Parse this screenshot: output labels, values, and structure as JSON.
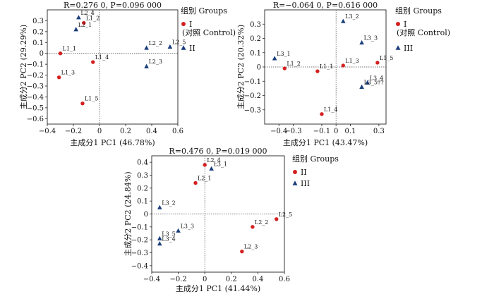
{
  "chart_data": [
    {
      "type": "scatter",
      "title": "R=0.276 0, P=0.096 000",
      "xlabel": "主成分1 PC1 (46.78%)",
      "ylabel": "主成分2 PC2 (29.29%)",
      "xlim": [
        -0.4,
        0.6
      ],
      "ylim": [
        -0.65,
        0.4
      ],
      "xticks": [
        -0.4,
        -0.2,
        0,
        0.2,
        0.4,
        0.6
      ],
      "yticks": [
        -0.6,
        -0.5,
        -0.4,
        -0.3,
        -0.2,
        -0.1,
        0,
        0.1,
        0.2,
        0.3
      ],
      "legend_title": "组别 Groups",
      "legend_position": "right",
      "series": [
        {
          "name": "I (对照 Control)",
          "marker": "circle",
          "color": "#d42020",
          "points": [
            {
              "label": "L1_1",
              "x": -0.3,
              "y": 0.0
            },
            {
              "label": "L1_2",
              "x": -0.12,
              "y": 0.28
            },
            {
              "label": "L1_3",
              "x": -0.31,
              "y": -0.22
            },
            {
              "label": "L1_4",
              "x": -0.05,
              "y": -0.08
            },
            {
              "label": "L1_5",
              "x": -0.13,
              "y": -0.46
            }
          ]
        },
        {
          "name": "II",
          "marker": "triangle",
          "color": "#1a3d7c",
          "points": [
            {
              "label": "L2_1",
              "x": -0.18,
              "y": 0.22
            },
            {
              "label": "L2_2",
              "x": 0.36,
              "y": 0.05
            },
            {
              "label": "L2_3",
              "x": 0.36,
              "y": -0.12
            },
            {
              "label": "L2_4",
              "x": -0.16,
              "y": 0.33
            },
            {
              "label": "L2_5",
              "x": 0.54,
              "y": 0.06
            }
          ]
        }
      ],
      "legend": [
        {
          "marker": "circle",
          "color": "#d42020",
          "line1": "I",
          "line2": "(对照 Control)"
        },
        {
          "marker": "triangle",
          "color": "#1a3d7c",
          "line1": "II",
          "line2": ""
        }
      ]
    },
    {
      "type": "scatter",
      "title": "R=−0.064 0, P=0.616 000",
      "xlabel": "主成分1 PC1 (43.47%)",
      "ylabel": "主成分2 PC2 (20.32%)",
      "xlim": [
        -0.5,
        0.35
      ],
      "ylim": [
        -0.4,
        0.4
      ],
      "xticks": [
        -0.4,
        -0.3,
        -0.1,
        0,
        0.1,
        0.3
      ],
      "yticks": [
        -0.3,
        -0.2,
        -0.1,
        0,
        0.1,
        0.2,
        0.3
      ],
      "legend_title": "组别 Groups",
      "legend_position": "right",
      "series": [
        {
          "name": "I (对照 Control)",
          "marker": "circle",
          "color": "#d42020",
          "points": [
            {
              "label": "L1_1",
              "x": -0.13,
              "y": -0.03
            },
            {
              "label": "L1_2",
              "x": -0.36,
              "y": -0.01
            },
            {
              "label": "L1_3",
              "x": 0.05,
              "y": 0.01
            },
            {
              "label": "L1_4",
              "x": -0.1,
              "y": -0.33
            },
            {
              "label": "L1_5",
              "x": 0.29,
              "y": 0.03
            }
          ]
        },
        {
          "name": "III",
          "marker": "triangle",
          "color": "#1a3d7c",
          "points": [
            {
              "label": "L3_1",
              "x": -0.43,
              "y": 0.06
            },
            {
              "label": "L3_2",
              "x": 0.05,
              "y": 0.32
            },
            {
              "label": "L3_3",
              "x": 0.18,
              "y": 0.17
            },
            {
              "label": "L3_4",
              "x": 0.22,
              "y": -0.11
            },
            {
              "label": "L3_5??",
              "x": 0.18,
              "y": -0.14
            }
          ]
        }
      ],
      "legend": [
        {
          "marker": "circle",
          "color": "#d42020",
          "line1": "I",
          "line2": "(对照  Control)"
        },
        {
          "marker": "triangle",
          "color": "#1a3d7c",
          "line1": "III",
          "line2": ""
        }
      ]
    },
    {
      "type": "scatter",
      "title": "R=0.476 0, P=0.019 000",
      "xlabel": "主成分1 PC1 (41.44%)",
      "ylabel": "主成分2 PC2 (24.84%)",
      "xlim": [
        -0.4,
        0.6
      ],
      "ylim": [
        -0.45,
        0.45
      ],
      "xticks": [
        -0.4,
        -0.2,
        0,
        0.2,
        0.4,
        0.6
      ],
      "yticks": [
        -0.4,
        -0.3,
        -0.2,
        -0.1,
        0,
        0.1,
        0.2,
        0.3,
        0.4
      ],
      "legend_title": "组别 Groups",
      "legend_position": "right",
      "series": [
        {
          "name": "II",
          "marker": "circle",
          "color": "#d42020",
          "points": [
            {
              "label": "L2_1",
              "x": -0.07,
              "y": 0.24
            },
            {
              "label": "L2_2",
              "x": 0.36,
              "y": -0.1
            },
            {
              "label": "L2_3",
              "x": 0.28,
              "y": -0.29
            },
            {
              "label": "L2_4",
              "x": 0.0,
              "y": 0.38
            },
            {
              "label": "L2_5",
              "x": 0.54,
              "y": -0.04
            }
          ]
        },
        {
          "name": "III",
          "marker": "triangle",
          "color": "#1a3d7c",
          "points": [
            {
              "label": "L3_1",
              "x": 0.05,
              "y": 0.35
            },
            {
              "label": "L3_2",
              "x": -0.34,
              "y": 0.05
            },
            {
              "label": "L3_3",
              "x": -0.2,
              "y": -0.13
            },
            {
              "label": "L3_4",
              "x": -0.34,
              "y": -0.23
            },
            {
              "label": "L3_5",
              "x": -0.34,
              "y": -0.19
            }
          ]
        }
      ],
      "legend": [
        {
          "marker": "circle",
          "color": "#d42020",
          "line1": "II",
          "line2": ""
        },
        {
          "marker": "triangle",
          "color": "#1a3d7c",
          "line1": "III",
          "line2": ""
        }
      ]
    }
  ]
}
